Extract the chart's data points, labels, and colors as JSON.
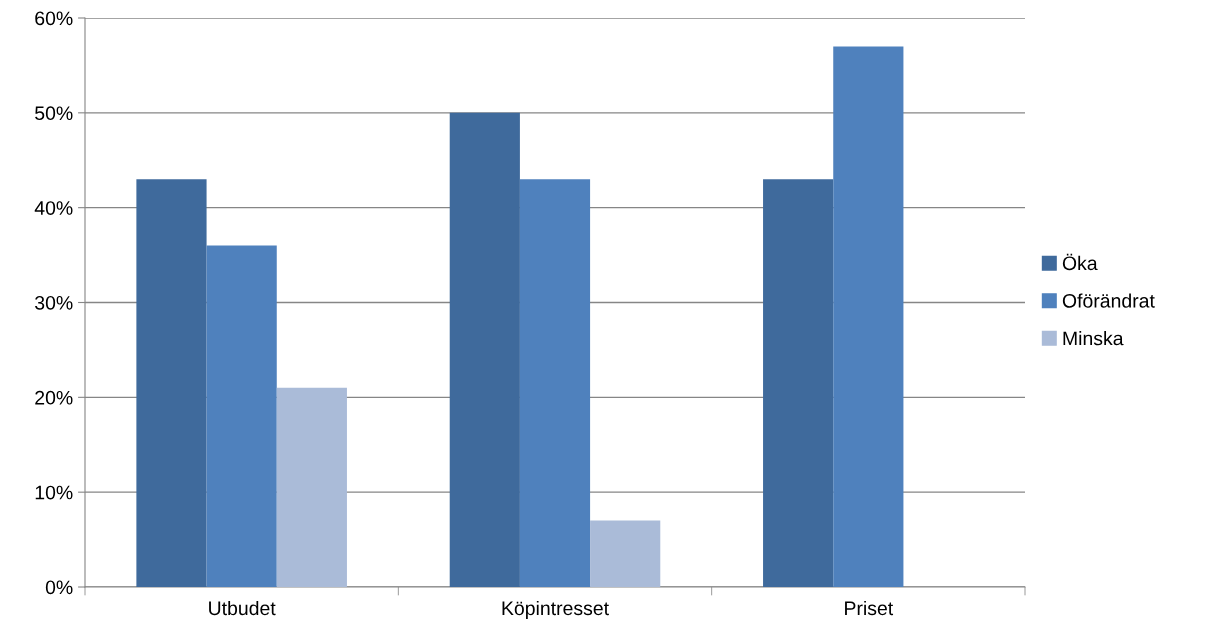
{
  "chart_data": {
    "type": "bar",
    "categories": [
      "Utbudet",
      "Köpintresset",
      "Priset"
    ],
    "series": [
      {
        "name": "Öka",
        "color": "#3f6a9c",
        "values": [
          43,
          50,
          43
        ]
      },
      {
        "name": "Oförändrat",
        "color": "#4f81bd",
        "values": [
          36,
          43,
          57
        ]
      },
      {
        "name": "Minska",
        "color": "#aabbd8",
        "values": [
          21,
          7,
          null
        ]
      }
    ],
    "ylim": [
      0,
      60
    ],
    "yticks": [
      {
        "value": 0,
        "label": "0%"
      },
      {
        "value": 10,
        "label": "10%"
      },
      {
        "value": 20,
        "label": "20%"
      },
      {
        "value": 30,
        "label": "30%"
      },
      {
        "value": 40,
        "label": "40%"
      },
      {
        "value": 50,
        "label": "50%"
      },
      {
        "value": 60,
        "label": "60%"
      }
    ],
    "grid": "y",
    "legend": "right"
  }
}
